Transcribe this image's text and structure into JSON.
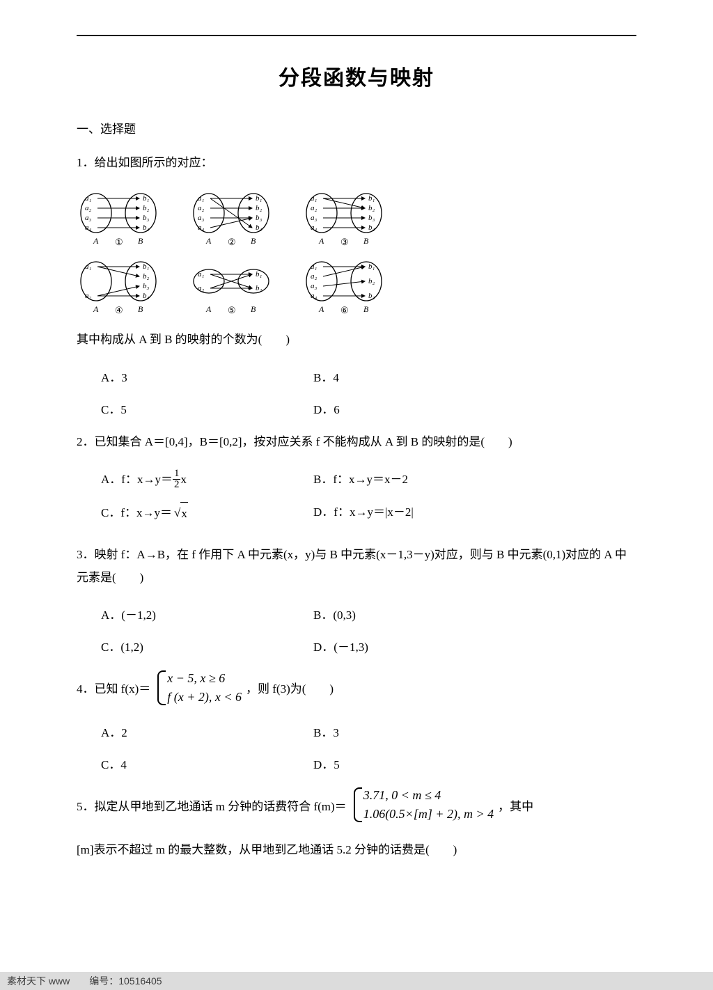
{
  "colors": {
    "page_bg": "#ffffff",
    "text": "#000000",
    "watermark_bg": "#dcdcdc",
    "watermark_text": "#3e3e3e"
  },
  "typography": {
    "title_fontsize": 30,
    "body_fontsize": 17,
    "math_fontsize": 18
  },
  "title": "分段函数与映射",
  "section1": "一、选择题",
  "q1": {
    "stem": "1．给出如图所示的对应：",
    "ask": "其中构成从 A 到 B 的映射的个数为(  )",
    "opts": {
      "A": "A．3",
      "B": "B．4",
      "C": "C．5",
      "D": "D．6"
    },
    "diagrams": [
      {
        "n": "①",
        "left": [
          "a₁",
          "a₂",
          "a₃",
          "a₄"
        ],
        "right": [
          "b₁",
          "b₂",
          "b₃",
          "b₄"
        ],
        "edges": [
          [
            0,
            0
          ],
          [
            1,
            1
          ],
          [
            2,
            2
          ],
          [
            3,
            3
          ]
        ]
      },
      {
        "n": "②",
        "left": [
          "a₁",
          "a₂",
          "a₃",
          "a₄"
        ],
        "right": [
          "b₁",
          "b₂",
          "b₃",
          "b₄"
        ],
        "edges": [
          [
            0,
            0
          ],
          [
            1,
            1
          ],
          [
            2,
            2
          ],
          [
            3,
            2
          ],
          [
            0,
            3
          ]
        ]
      },
      {
        "n": "③",
        "left": [
          "a₁",
          "a₂",
          "a₃",
          "a₄"
        ],
        "right": [
          "b₁",
          "b₂",
          "b₃",
          "b₄"
        ],
        "edges": [
          [
            0,
            0
          ],
          [
            1,
            1
          ],
          [
            2,
            2
          ],
          [
            3,
            3
          ],
          [
            0,
            1
          ]
        ]
      },
      {
        "n": "④",
        "left": [
          "a₁",
          "a₂"
        ],
        "right": [
          "b₁",
          "b₂",
          "b₃",
          "b₄"
        ],
        "edges": [
          [
            0,
            0
          ],
          [
            0,
            1
          ],
          [
            1,
            2
          ],
          [
            1,
            3
          ]
        ]
      },
      {
        "n": "⑤",
        "left": [
          "a₁",
          "a₂"
        ],
        "right": [
          "b₁",
          "b₂"
        ],
        "edges": [
          [
            0,
            0
          ],
          [
            0,
            1
          ],
          [
            1,
            0
          ],
          [
            1,
            1
          ]
        ]
      },
      {
        "n": "⑥",
        "left": [
          "a₁",
          "a₂",
          "a₃",
          "a₄"
        ],
        "right": [
          "b₁",
          "b₂",
          "b₃"
        ],
        "edges": [
          [
            0,
            0
          ],
          [
            1,
            0
          ],
          [
            2,
            1
          ],
          [
            3,
            2
          ]
        ]
      }
    ],
    "set_labels": {
      "A": "A",
      "B": "B"
    },
    "diagram_style": {
      "oval_stroke": "#000000",
      "oval_stroke_width": 1.3,
      "label_fontsize": 11,
      "arrow_color": "#000000"
    }
  },
  "q2": {
    "stem": "2．已知集合 A＝[0,4]，B＝[0,2]，按对应关系 f 不能构成从 A 到 B 的映射的是(  )",
    "optA_pre": "A．f：x→y＝",
    "optA_frac": {
      "num": "1",
      "den": "2"
    },
    "optA_post": "x",
    "optB": "B．f：x→y＝x－2",
    "optC_pre": "C．f：x→y＝",
    "optC_rad": "x",
    "optD": "D．f：x→y＝|x－2|"
  },
  "q3": {
    "stem": "3．映射 f：A→B，在 f 作用下 A 中元素(x，y)与 B 中元素(x－1,3－y)对应，则与 B 中元素(0,1)对应的 A 中元素是(  )",
    "opts": {
      "A": "A．(－1,2)",
      "B": "B．(0,3)",
      "C": "C．(1,2)",
      "D": "D．(－1,3)"
    }
  },
  "q4": {
    "pre": "4．已知 f(x)＝",
    "line1": "x − 5, x ≥ 6",
    "line2": "f (x + 2), x < 6",
    "post": "，则 f(3)为(  )",
    "opts": {
      "A": "A．2",
      "B": "B．3",
      "C": "C．4",
      "D": "D．5"
    }
  },
  "q5": {
    "pre": "5．拟定从甲地到乙地通话 m 分钟的话费符合 f(m)＝",
    "line1": "3.71, 0 < m ≤ 4",
    "line2": "1.06(0.5×[m] + 2), m > 4",
    "post": "，其中",
    "tail": "[m]表示不超过 m 的最大整数，从甲地到乙地通话 5.2 分钟的话费是(  )"
  },
  "watermark": {
    "left": "素材天下  www",
    "right": "编号：10516405"
  }
}
